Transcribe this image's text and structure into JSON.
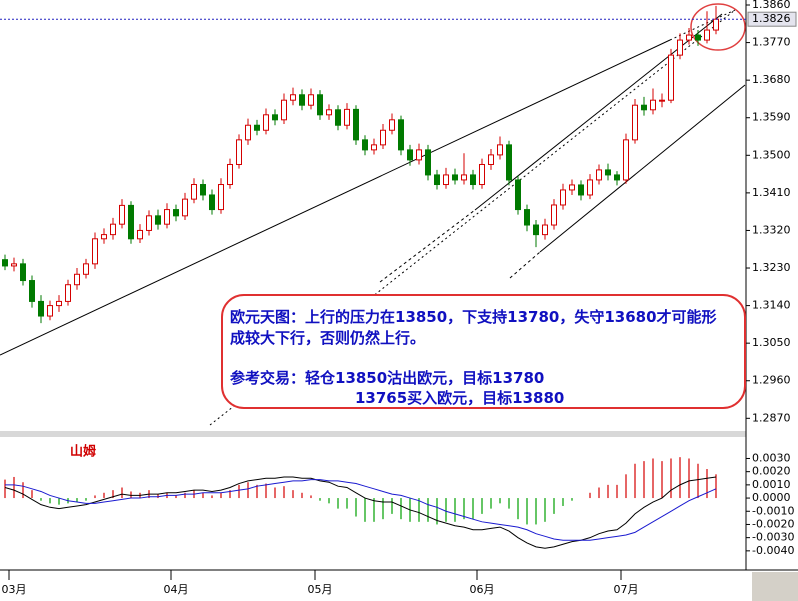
{
  "chart_data": [
    {
      "type": "candlestick",
      "categories": [
        null,
        "03月",
        null,
        null,
        null,
        null,
        null,
        null,
        null,
        null,
        null,
        null,
        null,
        null,
        null,
        null,
        null,
        null,
        null,
        "04月",
        null,
        null,
        null,
        null,
        null,
        null,
        null,
        null,
        null,
        null,
        null,
        null,
        null,
        null,
        null,
        "05月",
        null,
        null,
        null,
        null,
        null,
        null,
        null,
        null,
        null,
        null,
        null,
        null,
        null,
        null,
        null,
        null,
        null,
        "06月",
        null,
        null,
        null,
        null,
        null,
        null,
        null,
        null,
        null,
        null,
        null,
        null,
        null,
        null,
        null,
        "07月",
        null,
        null,
        null,
        null,
        null,
        null,
        null,
        null,
        null,
        null
      ],
      "open": [
        1.325,
        1.3235,
        1.324,
        1.32,
        1.315,
        1.3115,
        1.314,
        1.315,
        1.319,
        1.3215,
        1.324,
        1.33,
        1.331,
        1.3335,
        1.338,
        1.33,
        1.332,
        1.3355,
        1.3335,
        1.337,
        1.3355,
        1.3395,
        1.343,
        1.3405,
        1.337,
        1.343,
        1.3478,
        1.3537,
        1.3572,
        1.356,
        1.3597,
        1.3585,
        1.3632,
        1.3645,
        1.362,
        1.3645,
        1.3597,
        1.3609,
        1.3572,
        1.361,
        1.3537,
        1.3513,
        1.3525,
        1.356,
        1.3585,
        1.3513,
        1.3489,
        1.3513,
        1.3453,
        1.343,
        1.3453,
        1.3441,
        1.3453,
        1.343,
        1.3478,
        1.3501,
        1.3525,
        1.3441,
        1.337,
        1.3333,
        1.331,
        1.3333,
        1.3381,
        1.3417,
        1.3429,
        1.3405,
        1.3441,
        1.3465,
        1.3453,
        1.3441,
        1.3537,
        1.362,
        1.3609,
        1.3632,
        1.3632,
        1.374,
        1.3776,
        1.3788,
        1.3776,
        1.38
      ],
      "high": [
        1.3262,
        1.3255,
        1.3252,
        1.3212,
        1.3165,
        1.3152,
        1.3165,
        1.3202,
        1.323,
        1.3252,
        1.3315,
        1.3325,
        1.335,
        1.3395,
        1.339,
        1.3335,
        1.3368,
        1.337,
        1.3385,
        1.3382,
        1.341,
        1.3445,
        1.3442,
        1.3418,
        1.3445,
        1.3492,
        1.355,
        1.3588,
        1.3585,
        1.3612,
        1.361,
        1.3648,
        1.3662,
        1.3658,
        1.366,
        1.3656,
        1.3622,
        1.362,
        1.3625,
        1.362,
        1.3548,
        1.354,
        1.3575,
        1.36,
        1.3595,
        1.3525,
        1.3528,
        1.3525,
        1.3465,
        1.347,
        1.3468,
        1.3505,
        1.3465,
        1.3492,
        1.3515,
        1.3545,
        1.3535,
        1.3452,
        1.3382,
        1.3345,
        1.3348,
        1.3395,
        1.3432,
        1.3442,
        1.344,
        1.3455,
        1.3478,
        1.348,
        1.3462,
        1.3552,
        1.3635,
        1.364,
        1.366,
        1.3648,
        1.3755,
        1.3792,
        1.3805,
        1.38,
        1.3845,
        1.3858
      ],
      "low": [
        1.3225,
        1.3222,
        1.3188,
        1.3135,
        1.3098,
        1.3105,
        1.3125,
        1.314,
        1.3178,
        1.3205,
        1.3228,
        1.3288,
        1.3298,
        1.3325,
        1.3288,
        1.329,
        1.3308,
        1.3322,
        1.3325,
        1.3342,
        1.3345,
        1.3385,
        1.3392,
        1.3358,
        1.336,
        1.342,
        1.3468,
        1.3525,
        1.3548,
        1.355,
        1.3572,
        1.3575,
        1.362,
        1.3608,
        1.361,
        1.3585,
        1.3585,
        1.356,
        1.3562,
        1.3525,
        1.35,
        1.3502,
        1.3515,
        1.355,
        1.35,
        1.3475,
        1.3478,
        1.344,
        1.3418,
        1.342,
        1.343,
        1.343,
        1.3418,
        1.342,
        1.3465,
        1.349,
        1.3428,
        1.3358,
        1.3318,
        1.328,
        1.3298,
        1.3322,
        1.337,
        1.3405,
        1.3392,
        1.3395,
        1.343,
        1.344,
        1.3428,
        1.3432,
        1.3528,
        1.3595,
        1.3598,
        1.3615,
        1.3625,
        1.373,
        1.3765,
        1.3762,
        1.3768,
        1.379
      ],
      "close": [
        1.3235,
        1.324,
        1.32,
        1.315,
        1.3115,
        1.314,
        1.315,
        1.319,
        1.3215,
        1.324,
        1.33,
        1.331,
        1.3335,
        1.338,
        1.33,
        1.332,
        1.3355,
        1.3335,
        1.337,
        1.3355,
        1.3395,
        1.343,
        1.3405,
        1.337,
        1.343,
        1.3478,
        1.3537,
        1.3572,
        1.356,
        1.3597,
        1.3585,
        1.3632,
        1.3645,
        1.362,
        1.3645,
        1.3597,
        1.3609,
        1.3572,
        1.361,
        1.3537,
        1.3513,
        1.3525,
        1.356,
        1.3585,
        1.3513,
        1.3489,
        1.3513,
        1.3453,
        1.343,
        1.3453,
        1.3441,
        1.3453,
        1.343,
        1.3478,
        1.3501,
        1.3525,
        1.3441,
        1.337,
        1.3333,
        1.331,
        1.3333,
        1.3381,
        1.3417,
        1.3429,
        1.3405,
        1.3441,
        1.3465,
        1.3453,
        1.3441,
        1.3537,
        1.362,
        1.3609,
        1.3632,
        1.3632,
        1.374,
        1.3776,
        1.3788,
        1.3776,
        1.38,
        1.3826
      ],
      "up_color": "#d40000",
      "down_color": "#007a00",
      "ylim": [
        1.2842,
        1.3872
      ],
      "yticks": [
        {
          "value": 1.386,
          "label": "1.3860"
        },
        {
          "value": 1.377,
          "label": "1.3770"
        },
        {
          "value": 1.368,
          "label": "1.3680"
        },
        {
          "value": 1.359,
          "label": "1.3590"
        },
        {
          "value": 1.35,
          "label": "1.3500"
        },
        {
          "value": 1.341,
          "label": "1.3410"
        },
        {
          "value": 1.332,
          "label": "1.3320"
        },
        {
          "value": 1.323,
          "label": "1.3230"
        },
        {
          "value": 1.314,
          "label": "1.3140"
        },
        {
          "value": 1.305,
          "label": "1.3050"
        },
        {
          "value": 1.296,
          "label": "1.2960"
        },
        {
          "value": 1.287,
          "label": "1.2870"
        }
      ],
      "current_price": {
        "value": 1.3826,
        "label": "1.3826"
      },
      "annotation": [
        "欧元天图：上行的压力在13850，下支持13780，失守13680才可能形",
        "成较大下行，否则仍然上行。",
        "参考交易：轻仓13850沽出欧元，目标13780",
        "13765买入欧元，目标13880"
      ]
    },
    {
      "type": "macd",
      "title": "山姆",
      "hist": [
        0.0014,
        0.0016,
        0.0012,
        0.0006,
        -0.0002,
        -0.0004,
        -0.0005,
        -0.0004,
        -0.0003,
        -0.0002,
        0.0002,
        0.0004,
        0.0006,
        0.0008,
        0.0005,
        0.0004,
        0.0006,
        0.0003,
        0.0004,
        0.0002,
        0.0004,
        0.0006,
        0.0004,
        0.0002,
        0.0004,
        0.0006,
        0.001,
        0.0012,
        0.001,
        0.0011,
        0.0008,
        0.0009,
        0.0006,
        0.0004,
        0.0002,
        -0.0002,
        -0.0004,
        -0.0008,
        -0.0008,
        -0.0014,
        -0.0018,
        -0.0018,
        -0.0016,
        -0.0012,
        -0.0016,
        -0.0018,
        -0.0018,
        -0.0018,
        -0.002,
        -0.0018,
        -0.0018,
        -0.0016,
        -0.0016,
        -0.0012,
        -0.0008,
        -0.0004,
        -0.0008,
        -0.0016,
        -0.002,
        -0.002,
        -0.0018,
        -0.0012,
        -0.0006,
        -0.0002,
        0,
        0.0004,
        0.0008,
        0.001,
        0.001,
        0.0018,
        0.0026,
        0.0028,
        0.003,
        0.0028,
        0.003,
        0.0031,
        0.003,
        0.0026,
        0.0022,
        0.0018
      ],
      "dif": [
        0.0008,
        0.0006,
        0.0003,
        -0.0001,
        -0.0005,
        -0.0007,
        -0.0008,
        -0.0007,
        -0.0006,
        -0.0005,
        -0.0003,
        -0.0001,
        0.0001,
        0.0003,
        0.0002,
        0.0002,
        0.0003,
        0.0003,
        0.0004,
        0.0004,
        0.0005,
        0.0006,
        0.0006,
        0.0005,
        0.0006,
        0.0008,
        0.0011,
        0.0013,
        0.0014,
        0.0015,
        0.0015,
        0.0016,
        0.0016,
        0.0015,
        0.0015,
        0.0013,
        0.0012,
        0.0009,
        0.0008,
        0.0004,
        0,
        -0.0002,
        -0.0003,
        -0.0003,
        -0.0006,
        -0.0009,
        -0.0011,
        -0.0014,
        -0.0017,
        -0.0019,
        -0.0021,
        -0.0022,
        -0.0024,
        -0.0024,
        -0.0023,
        -0.0022,
        -0.0025,
        -0.003,
        -0.0034,
        -0.0037,
        -0.0038,
        -0.0037,
        -0.0035,
        -0.0033,
        -0.0032,
        -0.003,
        -0.0027,
        -0.0025,
        -0.0024,
        -0.0019,
        -0.0012,
        -0.0007,
        -0.0003,
        0,
        0.0006,
        0.001,
        0.0013,
        0.0014,
        0.0015,
        0.0016
      ],
      "dea": [
        0.001,
        0.001,
        0.0009,
        0.0007,
        0.0005,
        0.0002,
        0,
        -0.0002,
        -0.0003,
        -0.0004,
        -0.0004,
        -0.0003,
        -0.0002,
        -0.0001,
        0,
        0,
        0.0001,
        0.0001,
        0.0002,
        0.0002,
        0.0003,
        0.0003,
        0.0004,
        0.0004,
        0.0004,
        0.0005,
        0.0006,
        0.0007,
        0.0009,
        0.001,
        0.0011,
        0.0012,
        0.0013,
        0.0013,
        0.0014,
        0.0014,
        0.0013,
        0.0013,
        0.0012,
        0.0011,
        0.0009,
        0.0007,
        0.0005,
        0.0003,
        0.0002,
        0,
        -0.0002,
        -0.0005,
        -0.0007,
        -0.001,
        -0.0012,
        -0.0014,
        -0.0016,
        -0.0018,
        -0.0019,
        -0.002,
        -0.0021,
        -0.0022,
        -0.0024,
        -0.0027,
        -0.0029,
        -0.0031,
        -0.0032,
        -0.0032,
        -0.0032,
        -0.0032,
        -0.0031,
        -0.003,
        -0.0029,
        -0.0028,
        -0.0026,
        -0.0022,
        -0.0018,
        -0.0014,
        -0.001,
        -0.0006,
        -0.0002,
        0.0001,
        0.0004,
        0.0007
      ],
      "dif_color": "#000000",
      "dea_color": "#1a1ad0",
      "up_color": "#d40000",
      "down_color": "#00a000",
      "ylim": [
        -0.0053,
        0.0044
      ],
      "yticks": [
        {
          "value": 0.003,
          "label": "0.0030"
        },
        {
          "value": 0.002,
          "label": "0.0020"
        },
        {
          "value": 0.001,
          "label": "0.0010"
        },
        {
          "value": 0,
          "label": "0.0000"
        },
        {
          "value": -0.001,
          "label": "-0.0010"
        },
        {
          "value": -0.002,
          "label": "-0.0020"
        },
        {
          "value": -0.003,
          "label": "-0.0030"
        },
        {
          "value": -0.004,
          "label": "-0.0040"
        }
      ]
    }
  ]
}
